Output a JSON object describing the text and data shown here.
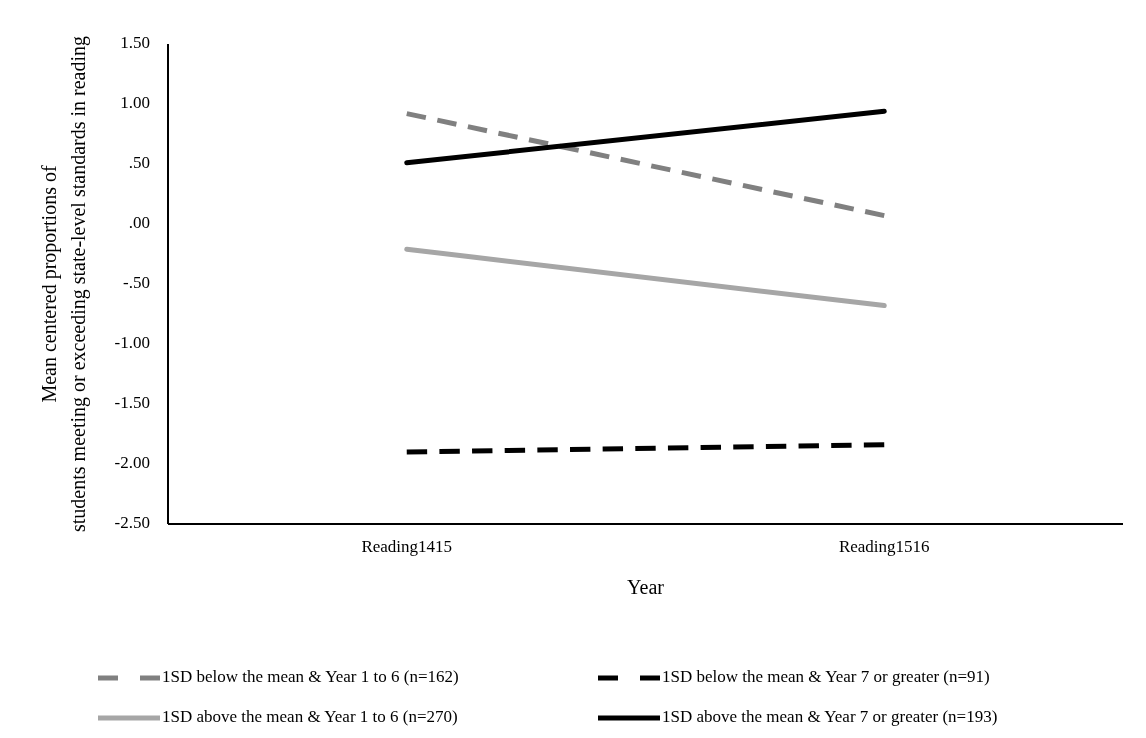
{
  "chart_data": {
    "type": "line",
    "xlabel": "Year",
    "ylabel": "Mean centered proportions of students meeting or exceeding state-level standards in reading",
    "categories": [
      "Reading1415",
      "Reading1516"
    ],
    "ylim": [
      -2.5,
      1.5
    ],
    "yticks": [
      {
        "value": 1.5,
        "label": "1.50"
      },
      {
        "value": 1,
        "label": "1.00"
      },
      {
        "value": 0.5,
        "label": ".50"
      },
      {
        "value": 0,
        "label": ".00"
      },
      {
        "value": -0.5,
        "label": "-.50"
      },
      {
        "value": -1,
        "label": "-1.00"
      },
      {
        "value": -1.5,
        "label": "-1.50"
      },
      {
        "value": -2,
        "label": "-2.00"
      },
      {
        "value": -2.5,
        "label": "-2.50"
      }
    ],
    "grid": false,
    "legend": "bottom",
    "marker": "none",
    "series": [
      {
        "name": "1SD below the mean & Year 1 to 6 (n=162)",
        "color": "#808080",
        "line_style": "dashed",
        "values": [
          0.92,
          0.07
        ]
      },
      {
        "name": "1SD below the mean & Year 7 or greater (n=91)",
        "color": "#000000",
        "line_style": "dashed",
        "values": [
          -1.9,
          -1.84
        ]
      },
      {
        "name": "1SD above the mean & Year 1 to 6 (n=270)",
        "color": "#a6a6a6",
        "line_style": "solid",
        "values": [
          -0.21,
          -0.68
        ]
      },
      {
        "name": "1SD above the mean & Year 7 or greater (n=193)",
        "color": "#000000",
        "line_style": "solid",
        "values": [
          0.51,
          0.94
        ]
      }
    ]
  }
}
